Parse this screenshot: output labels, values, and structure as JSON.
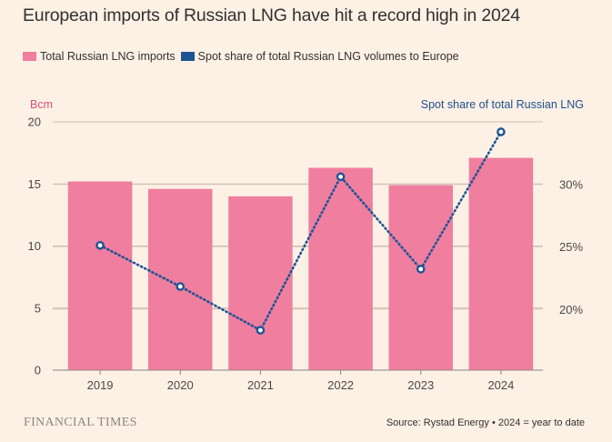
{
  "chart_data": {
    "type": "bar",
    "title": "European imports of Russian LNG have hit a record high in 2024",
    "categories": [
      "2019",
      "2020",
      "2021",
      "2022",
      "2023",
      "2024"
    ],
    "series": [
      {
        "name": "Total Russian LNG imports",
        "type": "bar",
        "axis": "left",
        "color": "#f07e9f",
        "values": [
          15.2,
          14.6,
          14.0,
          16.3,
          14.9,
          17.1
        ]
      },
      {
        "name": "Spot share of total Russian LNG volumes to Europe",
        "type": "line",
        "style": "dotted",
        "axis": "right",
        "color": "#1f5494",
        "values": [
          25.1,
          21.8,
          18.3,
          30.6,
          23.2,
          34.2
        ]
      }
    ],
    "left_axis": {
      "label": "Bcm",
      "label_color": "#e0507a",
      "ylim": [
        0,
        20
      ],
      "ticks": [
        "0",
        "5",
        "10",
        "15",
        "20"
      ],
      "tick_values": [
        0,
        5,
        10,
        15,
        20
      ]
    },
    "right_axis": {
      "label": "Spot share of total Russian LNG",
      "label_color": "#1f4f8c",
      "ylim": [
        15.1,
        35.0
      ],
      "ticks": [
        "20%",
        "25%",
        "30%"
      ],
      "tick_values": [
        20,
        25,
        30
      ]
    },
    "grid": true,
    "legend_position": "top-left"
  },
  "legend": [
    {
      "label": "Total Russian LNG imports",
      "color": "#f07e9f"
    },
    {
      "label": "Spot share of total Russian LNG volumes to Europe",
      "color": "#1f5494"
    }
  ],
  "footer": {
    "brand": "FINANCIAL TIMES",
    "source": "Source: Rystad Energy • 2024 = year to date"
  }
}
